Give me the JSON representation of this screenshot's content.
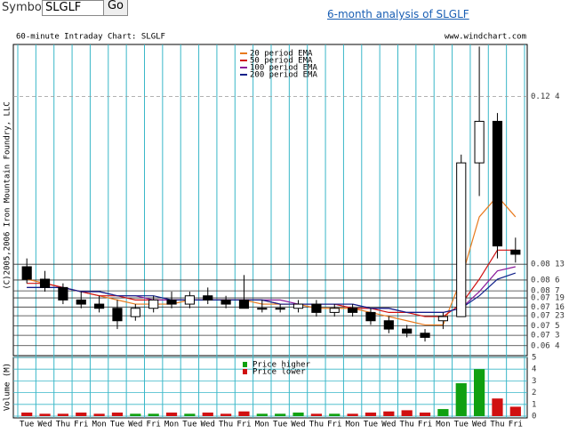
{
  "header": {
    "symbol_label": "Symbol",
    "symbol_value": "SLGLF",
    "button": "Go",
    "link": "6-month analysis of SLGLF"
  },
  "chart_data": {
    "type": "candlestick",
    "title": "60-minute Intraday Chart: SLGLF",
    "source": "www.windchart.com",
    "copyright": "(C)2005,2006 Iron Mountain Foundry, LLC",
    "categories": [
      "Tue",
      "Wed",
      "Thu",
      "Fri",
      "Mon",
      "Tue",
      "Wed",
      "Fri",
      "Mon",
      "Tue",
      "Wed",
      "Thu",
      "Fri",
      "Mon",
      "Tue",
      "Wed",
      "Thu",
      "Fri",
      "Mon",
      "Tue",
      "Wed",
      "Thu",
      "Fri",
      "Mon",
      "Tue",
      "Wed",
      "Thu",
      "Fri"
    ],
    "open": [
      0.083,
      0.08,
      0.078,
      0.075,
      0.074,
      0.073,
      0.071,
      0.073,
      0.075,
      0.074,
      0.076,
      0.075,
      0.075,
      0.073,
      0.073,
      0.073,
      0.074,
      0.072,
      0.073,
      0.072,
      0.07,
      0.068,
      0.067,
      0.07,
      0.071,
      0.108,
      0.118,
      0.087
    ],
    "high": [
      0.085,
      0.082,
      0.079,
      0.077,
      0.076,
      0.075,
      0.074,
      0.076,
      0.077,
      0.077,
      0.078,
      0.076,
      0.081,
      0.075,
      0.074,
      0.075,
      0.075,
      0.074,
      0.074,
      0.073,
      0.071,
      0.069,
      0.068,
      0.072,
      0.11,
      0.136,
      0.12,
      0.09
    ],
    "low": [
      0.079,
      0.077,
      0.074,
      0.073,
      0.072,
      0.068,
      0.07,
      0.072,
      0.073,
      0.073,
      0.074,
      0.073,
      0.073,
      0.072,
      0.072,
      0.072,
      0.071,
      0.071,
      0.071,
      0.069,
      0.067,
      0.066,
      0.065,
      0.068,
      0.071,
      0.1,
      0.085,
      0.084
    ],
    "close": [
      0.08,
      0.078,
      0.075,
      0.074,
      0.073,
      0.07,
      0.073,
      0.075,
      0.074,
      0.076,
      0.075,
      0.074,
      0.073,
      0.073,
      0.073,
      0.074,
      0.072,
      0.073,
      0.072,
      0.07,
      0.068,
      0.067,
      0.066,
      0.071,
      0.108,
      0.118,
      0.088,
      0.086
    ],
    "series": [
      {
        "name": "20 period EMA",
        "color": "#e87a1e",
        "values": [
          0.08,
          0.079,
          0.078,
          0.077,
          0.076,
          0.075,
          0.074,
          0.074,
          0.074,
          0.075,
          0.075,
          0.075,
          0.075,
          0.074,
          0.074,
          0.074,
          0.073,
          0.073,
          0.073,
          0.072,
          0.071,
          0.07,
          0.069,
          0.069,
          0.08,
          0.095,
          0.1,
          0.095
        ]
      },
      {
        "name": "50 period EMA",
        "color": "#d01010",
        "values": [
          0.079,
          0.079,
          0.078,
          0.077,
          0.076,
          0.076,
          0.075,
          0.075,
          0.075,
          0.075,
          0.075,
          0.075,
          0.075,
          0.075,
          0.074,
          0.074,
          0.074,
          0.074,
          0.073,
          0.073,
          0.072,
          0.072,
          0.071,
          0.071,
          0.074,
          0.08,
          0.087,
          0.087
        ]
      },
      {
        "name": "100 period EMA",
        "color": "#8a1a9a",
        "values": [
          0.078,
          0.078,
          0.078,
          0.077,
          0.077,
          0.076,
          0.076,
          0.075,
          0.075,
          0.075,
          0.075,
          0.075,
          0.075,
          0.075,
          0.075,
          0.074,
          0.074,
          0.074,
          0.074,
          0.073,
          0.073,
          0.072,
          0.072,
          0.072,
          0.073,
          0.077,
          0.082,
          0.083
        ]
      },
      {
        "name": "200 period EMA",
        "color": "#10208a",
        "values": [
          0.078,
          0.078,
          0.078,
          0.077,
          0.077,
          0.076,
          0.076,
          0.076,
          0.075,
          0.075,
          0.075,
          0.075,
          0.075,
          0.075,
          0.074,
          0.074,
          0.074,
          0.074,
          0.074,
          0.073,
          0.073,
          0.072,
          0.072,
          0.072,
          0.073,
          0.076,
          0.08,
          0.0815
        ]
      }
    ],
    "ylim": [
      0.0616,
      0.1365
    ],
    "yticks": [
      {
        "value": 0.124,
        "label": "0.12 4"
      },
      {
        "value": 0.0836,
        "label": "0.08 13"
      },
      {
        "value": 0.0798,
        "label": "0.08 6"
      },
      {
        "value": 0.0772,
        "label": "0.08 7"
      },
      {
        "value": 0.0755,
        "label": "0.07 19"
      },
      {
        "value": 0.0733,
        "label": "0.07 16"
      },
      {
        "value": 0.0712,
        "label": "0.07 23"
      },
      {
        "value": 0.0688,
        "label": "0.07 5"
      },
      {
        "value": 0.0665,
        "label": "0.07 3"
      },
      {
        "value": 0.064,
        "label": "0.06 4"
      }
    ],
    "volume": {
      "label": "Volume (M)",
      "values": [
        0.3,
        0.2,
        0.2,
        0.3,
        0.2,
        0.3,
        0.2,
        0.2,
        0.3,
        0.2,
        0.3,
        0.2,
        0.4,
        0.2,
        0.2,
        0.3,
        0.2,
        0.2,
        0.2,
        0.3,
        0.4,
        0.5,
        0.3,
        0.6,
        2.8,
        4.0,
        1.5,
        0.8
      ],
      "ylim": [
        0,
        5
      ],
      "yticks": [
        0,
        1,
        2,
        3,
        4,
        5
      ],
      "legend": [
        {
          "name": "Price higher",
          "color": "#10a010"
        },
        {
          "name": "Price lower",
          "color": "#d01010"
        }
      ]
    }
  }
}
